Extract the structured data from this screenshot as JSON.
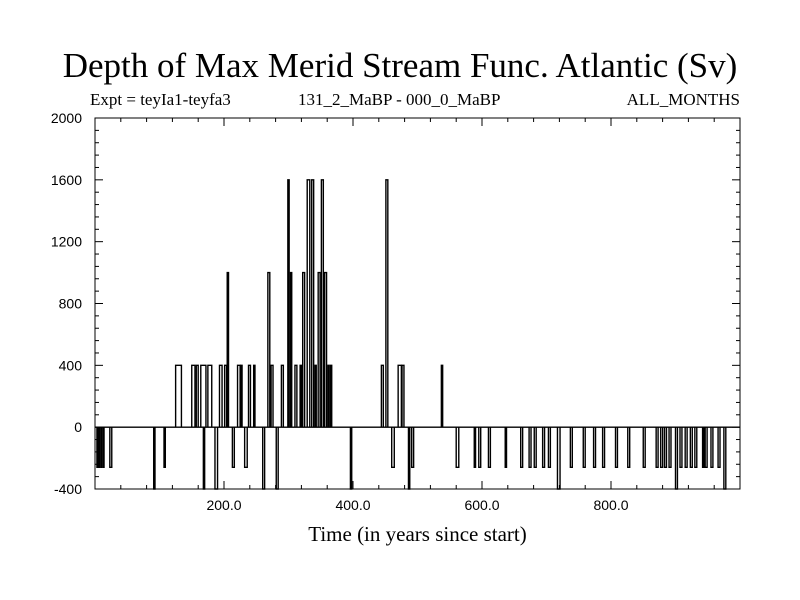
{
  "header": {
    "title": "Depth of Max Merid Stream Func. Atlantic (Sv)",
    "expt": "Expt = teyIa1-teyfa3",
    "period": "131_2_MaBP - 000_0_MaBP",
    "months": "ALL_MONTHS"
  },
  "chart_data": {
    "type": "line",
    "title": "Depth of Max Merid Stream Func. Atlantic (Sv)",
    "xlabel": "Time (in years since start)",
    "ylabel": "",
    "xlim": [
      0,
      1000
    ],
    "ylim": [
      -400,
      2000
    ],
    "x_ticks": [
      200,
      400,
      600,
      800
    ],
    "x_tick_labels": [
      "200.0",
      "400.0",
      "600.0",
      "800.0"
    ],
    "y_ticks": [
      -400,
      0,
      400,
      800,
      1200,
      1600,
      2000
    ],
    "y_tick_labels": [
      "-400",
      "0",
      "400",
      "800",
      "1200",
      "1600",
      "2000"
    ],
    "grid": false,
    "series": [
      {
        "values_note_free": true,
        "segments": [
          [
            0,
            20,
            0
          ],
          [
            3,
            5,
            -260
          ],
          [
            6,
            7,
            -260
          ],
          [
            9,
            11,
            -260
          ],
          [
            13,
            14,
            -260
          ],
          [
            23,
            26,
            -260
          ],
          [
            91,
            93,
            -400
          ],
          [
            107,
            109,
            -260
          ],
          [
            125,
            134,
            400
          ],
          [
            150,
            155,
            400
          ],
          [
            157,
            160,
            400
          ],
          [
            164,
            172,
            400
          ],
          [
            168,
            170,
            -400
          ],
          [
            175,
            181,
            400
          ],
          [
            186,
            190,
            -400
          ],
          [
            193,
            197,
            400
          ],
          [
            201,
            204,
            400
          ],
          [
            205,
            207,
            1000
          ],
          [
            213,
            216,
            -260
          ],
          [
            221,
            225,
            400
          ],
          [
            226,
            228,
            400
          ],
          [
            232,
            236,
            -260
          ],
          [
            238,
            241,
            400
          ],
          [
            246,
            248,
            400
          ],
          [
            260,
            263,
            -400
          ],
          [
            268,
            271,
            1000
          ],
          [
            273,
            276,
            400
          ],
          [
            281,
            284,
            -400
          ],
          [
            289,
            292,
            400
          ],
          [
            299,
            301,
            1600
          ],
          [
            303,
            305,
            1000
          ],
          [
            310,
            313,
            400
          ],
          [
            318,
            320,
            400
          ],
          [
            322,
            325,
            1000
          ],
          [
            329,
            333,
            1600
          ],
          [
            336,
            339,
            1600
          ],
          [
            341,
            343,
            400
          ],
          [
            346,
            349,
            1000
          ],
          [
            351,
            354,
            1600
          ],
          [
            356,
            359,
            1000
          ],
          [
            361,
            363,
            400
          ],
          [
            365,
            367,
            400
          ],
          [
            396,
            398,
            -400
          ],
          [
            444,
            447,
            400
          ],
          [
            451,
            454,
            1600
          ],
          [
            460,
            464,
            -260
          ],
          [
            470,
            475,
            400
          ],
          [
            476,
            479,
            400
          ],
          [
            486,
            488,
            -400
          ],
          [
            491,
            494,
            -260
          ],
          [
            537,
            539,
            400
          ],
          [
            560,
            564,
            -260
          ],
          [
            588,
            590,
            -260
          ],
          [
            595,
            598,
            -260
          ],
          [
            610,
            613,
            -260
          ],
          [
            636,
            638,
            -260
          ],
          [
            660,
            663,
            -260
          ],
          [
            673,
            676,
            -260
          ],
          [
            681,
            684,
            -260
          ],
          [
            694,
            697,
            -260
          ],
          [
            703,
            706,
            -260
          ],
          [
            717,
            721,
            -400
          ],
          [
            737,
            740,
            -260
          ],
          [
            757,
            760,
            -260
          ],
          [
            773,
            776,
            -260
          ],
          [
            787,
            790,
            -260
          ],
          [
            807,
            810,
            -260
          ],
          [
            826,
            829,
            -260
          ],
          [
            850,
            853,
            -260
          ],
          [
            870,
            873,
            -260
          ],
          [
            877,
            880,
            -260
          ],
          [
            883,
            886,
            -260
          ],
          [
            890,
            893,
            -260
          ],
          [
            900,
            903,
            -400
          ],
          [
            907,
            910,
            -260
          ],
          [
            915,
            918,
            -260
          ],
          [
            923,
            926,
            -260
          ],
          [
            930,
            933,
            -260
          ],
          [
            942,
            944,
            -260
          ],
          [
            946,
            949,
            -260
          ],
          [
            955,
            958,
            -260
          ],
          [
            966,
            969,
            -260
          ],
          [
            975,
            978,
            -400
          ]
        ]
      }
    ]
  }
}
